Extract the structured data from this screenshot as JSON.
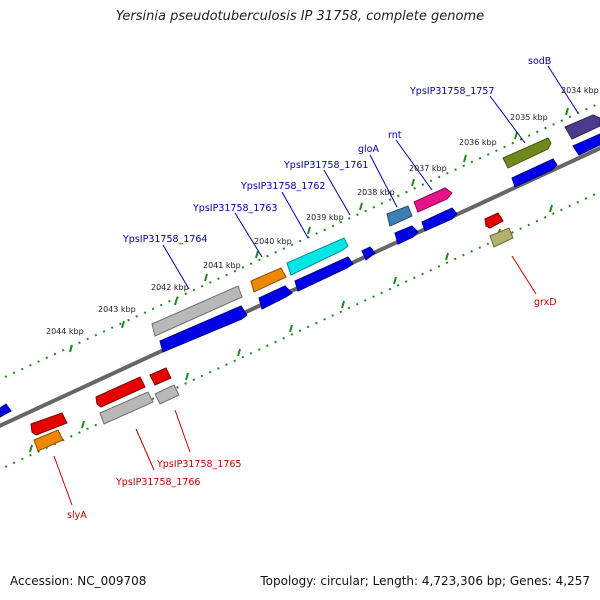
{
  "title": "Yersinia pseudotuberculosis IP 31758, complete genome",
  "footer": {
    "accession": "Accession: NC_009708",
    "summary": "Topology: circular; Length: 4,723,306 bp; Genes: 4,257"
  },
  "kbp_labels": [
    "2034 kbp",
    "2035 kbp",
    "2036 kbp",
    "2037 kbp",
    "2038 kbp",
    "2039 kbp",
    "2040 kbp",
    "2041 kbp",
    "2042 kbp",
    "2043 kbp",
    "2044 kbp"
  ],
  "forward_labels": [
    "sodB",
    "YpsIP31758_1757",
    "rnt",
    "gloA",
    "YpsIP31758_1761",
    "YpsIP31758_1762",
    "YpsIP31758_1763",
    "YpsIP31758_1764"
  ],
  "reverse_labels": [
    "grxD",
    "YpsIP31758_1765",
    "YpsIP31758_1766",
    "slyA"
  ],
  "colors": {
    "backbone": "#7a7a7a",
    "tick": "#1a8a1a",
    "forward_label": "#0000a8",
    "reverse_label": "#c00000",
    "cds_blue": "#0000e6",
    "cds_grey": "#b8b8b8",
    "cds_orange": "#ee8800",
    "cds_cyan": "#00e6e6",
    "cds_steel": "#3d7fb5",
    "cds_magenta": "#e8128a",
    "cds_olive": "#6e8a1a",
    "cds_purple": "#4a3b8c",
    "cds_red": "#e60000",
    "cds_khaki": "#b0b070"
  }
}
